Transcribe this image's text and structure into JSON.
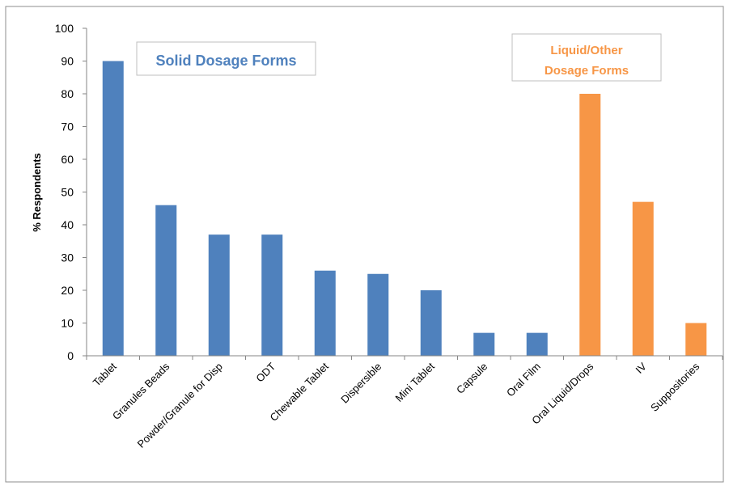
{
  "chart_data": {
    "type": "bar",
    "title": "",
    "xlabel": "",
    "ylabel": "% Respondents",
    "ylim": [
      0,
      100
    ],
    "yticks": [
      0,
      10,
      20,
      30,
      40,
      50,
      60,
      70,
      80,
      90,
      100
    ],
    "grid": false,
    "categories": [
      "Tablet",
      "Granules Beads",
      "Powder/Granule for Disp",
      "ODT",
      "Chewable Tablet",
      "Dispersible",
      "Mini Tablet",
      "Capsule",
      "Oral Film",
      "Oral Liquid/Drops",
      "IV",
      "Suppositories"
    ],
    "values": [
      90,
      46,
      37,
      37,
      26,
      25,
      20,
      7,
      7,
      80,
      47,
      10
    ],
    "bar_groups": [
      "solid",
      "solid",
      "solid",
      "solid",
      "solid",
      "solid",
      "solid",
      "solid",
      "solid",
      "liquid",
      "liquid",
      "liquid"
    ],
    "colors": {
      "solid": "#4f81bd",
      "liquid": "#f79646"
    },
    "annotations": [
      {
        "id": "solid",
        "lines": [
          "Solid Dosage Forms"
        ],
        "color": "#4f81bd"
      },
      {
        "id": "liquid",
        "lines": [
          "Liquid/Other",
          "Dosage Forms"
        ],
        "color": "#f79646"
      }
    ]
  }
}
